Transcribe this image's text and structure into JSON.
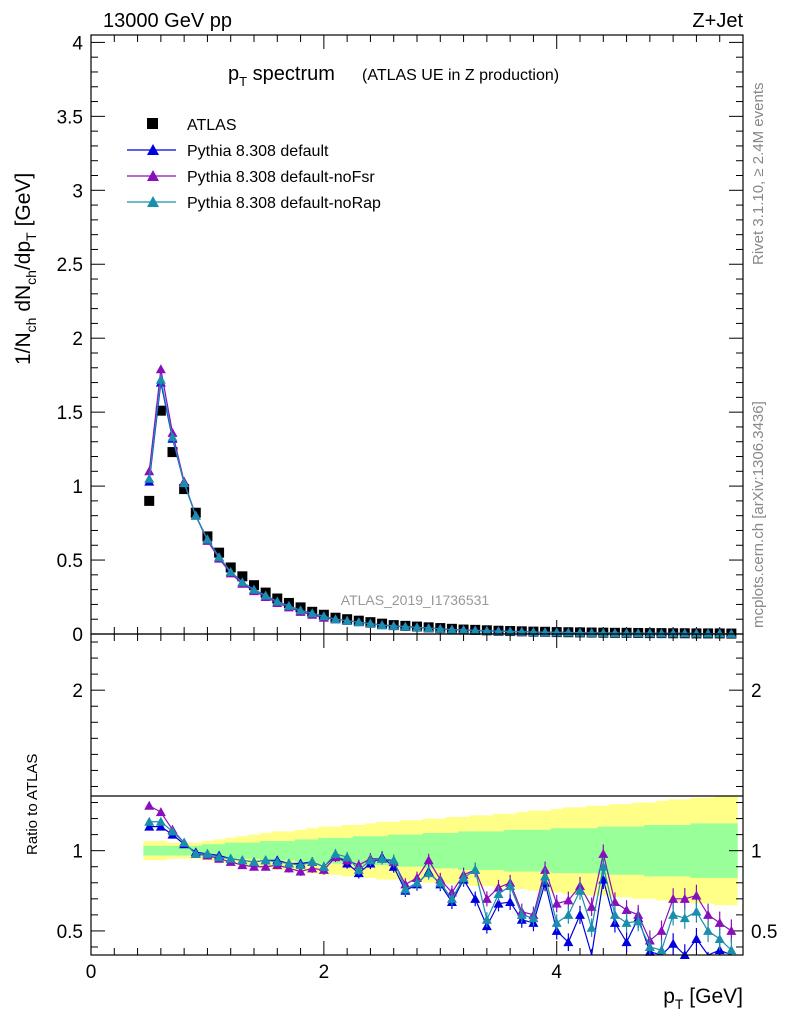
{
  "header": {
    "left": "13000 GeV pp",
    "right": "Z+Jet"
  },
  "side": {
    "top": "Rivet 3.1.10, ≥ 2.4M events",
    "bottom": "mcplots.cern.ch [arXiv:1306.3436]"
  },
  "plot": {
    "title_main": "p_T spectrum",
    "title_sub": "(ATLAS UE in Z production)",
    "analysis_tag": "ATLAS_2019_I1736531"
  },
  "colors": {
    "data": "#000000",
    "default": "#0000dd",
    "noFsr": "#8a0fbc",
    "noRap": "#1a8fad",
    "band_outer": "#ffff88",
    "band_inner": "#99ff99"
  },
  "chart_data": [
    {
      "type": "scatter",
      "title": "p_T spectrum (ATLAS UE in Z production)",
      "xlabel": "p_T [GeV]",
      "ylabel": "1/N_ch dN_ch/dp_T [GeV]",
      "xlim": [
        0,
        5.6
      ],
      "ylim": [
        0,
        4.05
      ],
      "yticks": [
        0,
        0.5,
        1,
        1.5,
        2,
        2.5,
        3,
        3.5,
        4
      ],
      "legend_position": "top-left",
      "x": [
        0.5,
        0.6,
        0.7,
        0.8,
        0.9,
        1.0,
        1.1,
        1.2,
        1.3,
        1.4,
        1.5,
        1.6,
        1.7,
        1.8,
        1.9,
        2.0,
        2.1,
        2.2,
        2.3,
        2.4,
        2.5,
        2.6,
        2.7,
        2.8,
        2.9,
        3.0,
        3.1,
        3.2,
        3.3,
        3.4,
        3.5,
        3.6,
        3.7,
        3.8,
        3.9,
        4.0,
        4.1,
        4.2,
        4.3,
        4.4,
        4.5,
        4.6,
        4.7,
        4.8,
        4.9,
        5.0,
        5.1,
        5.2,
        5.3,
        5.4,
        5.5
      ],
      "series": [
        {
          "name": "ATLAS",
          "marker": "square",
          "values": [
            0.9,
            1.51,
            1.23,
            0.98,
            0.82,
            0.66,
            0.55,
            0.45,
            0.39,
            0.33,
            0.28,
            0.24,
            0.21,
            0.18,
            0.15,
            0.13,
            0.11,
            0.1,
            0.09,
            0.08,
            0.07,
            0.06,
            0.055,
            0.05,
            0.045,
            0.04,
            0.035,
            0.03,
            0.028,
            0.025,
            0.022,
            0.02,
            0.018,
            0.016,
            0.015,
            0.013,
            0.012,
            0.011,
            0.01,
            0.009,
            0.008,
            0.008,
            0.007,
            0.006,
            0.006,
            0.005,
            0.005,
            0.004,
            0.004,
            0.004,
            0.003
          ]
        },
        {
          "name": "Pythia 8.308 default",
          "marker": "triangle",
          "values": [
            1.03,
            1.7,
            1.32,
            1.02,
            0.8,
            0.64,
            0.52,
            0.42,
            0.35,
            0.3,
            0.26,
            0.22,
            0.19,
            0.16,
            0.14,
            0.12,
            0.1,
            0.09,
            0.08,
            0.07,
            0.06,
            0.055,
            0.05,
            0.045,
            0.04,
            0.035,
            0.03,
            0.027,
            0.024,
            0.021,
            0.019,
            0.017,
            0.015,
            0.013,
            0.012,
            0.011,
            0.01,
            0.009,
            0.008,
            0.007,
            0.006,
            0.006,
            0.005,
            0.005,
            0.004,
            0.004,
            0.004,
            0.003,
            0.003,
            0.003,
            0.002
          ]
        },
        {
          "name": "Pythia 8.308 default-noFsr",
          "marker": "triangle",
          "values": [
            1.1,
            1.79,
            1.36,
            1.03,
            0.8,
            0.63,
            0.51,
            0.41,
            0.34,
            0.29,
            0.25,
            0.21,
            0.18,
            0.15,
            0.13,
            0.11,
            0.1,
            0.09,
            0.08,
            0.07,
            0.06,
            0.055,
            0.05,
            0.045,
            0.04,
            0.035,
            0.031,
            0.028,
            0.025,
            0.022,
            0.02,
            0.018,
            0.016,
            0.014,
            0.013,
            0.011,
            0.01,
            0.009,
            0.008,
            0.007,
            0.007,
            0.006,
            0.005,
            0.005,
            0.004,
            0.004,
            0.004,
            0.003,
            0.003,
            0.003,
            0.002
          ]
        },
        {
          "name": "Pythia 8.308 default-noRap",
          "marker": "triangle",
          "values": [
            1.05,
            1.72,
            1.33,
            1.02,
            0.8,
            0.64,
            0.52,
            0.42,
            0.35,
            0.3,
            0.26,
            0.22,
            0.19,
            0.16,
            0.14,
            0.12,
            0.1,
            0.09,
            0.08,
            0.07,
            0.06,
            0.055,
            0.05,
            0.045,
            0.04,
            0.035,
            0.03,
            0.027,
            0.024,
            0.021,
            0.019,
            0.017,
            0.015,
            0.013,
            0.012,
            0.011,
            0.01,
            0.009,
            0.008,
            0.007,
            0.006,
            0.006,
            0.005,
            0.005,
            0.004,
            0.004,
            0.004,
            0.003,
            0.003,
            0.003,
            0.002
          ]
        }
      ]
    },
    {
      "type": "line",
      "xlabel": "p_T [GeV]",
      "ylabel": "Ratio to ATLAS",
      "xlim": [
        0,
        5.6
      ],
      "xticks": [
        0,
        2,
        4
      ],
      "ylim": [
        0.35,
        2.35
      ],
      "yticks": [
        0.5,
        1,
        2
      ],
      "reference_line": 1,
      "band_inner": {
        "values": [
          0.03,
          0.03,
          0.03,
          0.03,
          0.03,
          0.04,
          0.04,
          0.05,
          0.05,
          0.05,
          0.06,
          0.06,
          0.06,
          0.07,
          0.07,
          0.08,
          0.08,
          0.08,
          0.09,
          0.09,
          0.09,
          0.1,
          0.1,
          0.1,
          0.11,
          0.11,
          0.11,
          0.12,
          0.12,
          0.12,
          0.12,
          0.13,
          0.13,
          0.13,
          0.13,
          0.14,
          0.14,
          0.14,
          0.14,
          0.15,
          0.15,
          0.15,
          0.15,
          0.16,
          0.16,
          0.16,
          0.16,
          0.17,
          0.17,
          0.17,
          0.17
        ]
      },
      "band_outer": {
        "values": [
          0.06,
          0.06,
          0.05,
          0.05,
          0.05,
          0.06,
          0.07,
          0.08,
          0.09,
          0.1,
          0.11,
          0.12,
          0.12,
          0.13,
          0.14,
          0.15,
          0.15,
          0.16,
          0.16,
          0.17,
          0.18,
          0.18,
          0.19,
          0.19,
          0.2,
          0.2,
          0.21,
          0.21,
          0.22,
          0.22,
          0.23,
          0.23,
          0.24,
          0.25,
          0.25,
          0.26,
          0.27,
          0.27,
          0.28,
          0.28,
          0.29,
          0.29,
          0.3,
          0.3,
          0.31,
          0.32,
          0.32,
          0.33,
          0.33,
          0.34,
          0.34
        ]
      },
      "series": [
        {
          "name": "Pythia 8.308 default",
          "values": [
            1.15,
            1.15,
            1.1,
            1.04,
            0.99,
            0.98,
            0.97,
            0.95,
            0.94,
            0.93,
            0.94,
            0.94,
            0.92,
            0.92,
            0.93,
            0.9,
            0.97,
            0.92,
            0.86,
            0.92,
            0.96,
            0.9,
            0.75,
            0.79,
            0.87,
            0.79,
            0.68,
            0.82,
            0.7,
            0.53,
            0.67,
            0.68,
            0.57,
            0.55,
            0.8,
            0.5,
            0.43,
            0.6,
            0.33,
            0.82,
            0.55,
            0.43,
            0.58,
            0.37,
            0.25,
            0.42,
            0.35,
            0.45,
            0.3,
            0.38,
            0.3
          ]
        },
        {
          "name": "Pythia 8.308 default-noFsr",
          "values": [
            1.28,
            1.24,
            1.13,
            1.05,
            0.98,
            0.97,
            0.95,
            0.93,
            0.91,
            0.9,
            0.9,
            0.91,
            0.89,
            0.87,
            0.89,
            0.88,
            0.96,
            0.94,
            0.91,
            0.95,
            0.95,
            0.93,
            0.79,
            0.83,
            0.94,
            0.82,
            0.74,
            0.85,
            0.88,
            0.7,
            0.77,
            0.8,
            0.62,
            0.6,
            0.88,
            0.67,
            0.69,
            0.78,
            0.65,
            0.98,
            0.68,
            0.63,
            0.6,
            0.44,
            0.5,
            0.7,
            0.7,
            0.72,
            0.6,
            0.55,
            0.5
          ]
        },
        {
          "name": "Pythia 8.308 default-noRap",
          "values": [
            1.18,
            1.18,
            1.12,
            1.05,
            0.98,
            0.98,
            0.96,
            0.95,
            0.94,
            0.93,
            0.94,
            0.93,
            0.92,
            0.91,
            0.93,
            0.9,
            0.98,
            0.96,
            0.88,
            0.94,
            0.95,
            0.94,
            0.76,
            0.8,
            0.86,
            0.8,
            0.7,
            0.83,
            0.88,
            0.57,
            0.73,
            0.78,
            0.6,
            0.58,
            0.84,
            0.55,
            0.6,
            0.75,
            0.52,
            0.9,
            0.6,
            0.55,
            0.56,
            0.4,
            0.38,
            0.6,
            0.58,
            0.62,
            0.5,
            0.45,
            0.38
          ]
        }
      ]
    }
  ]
}
